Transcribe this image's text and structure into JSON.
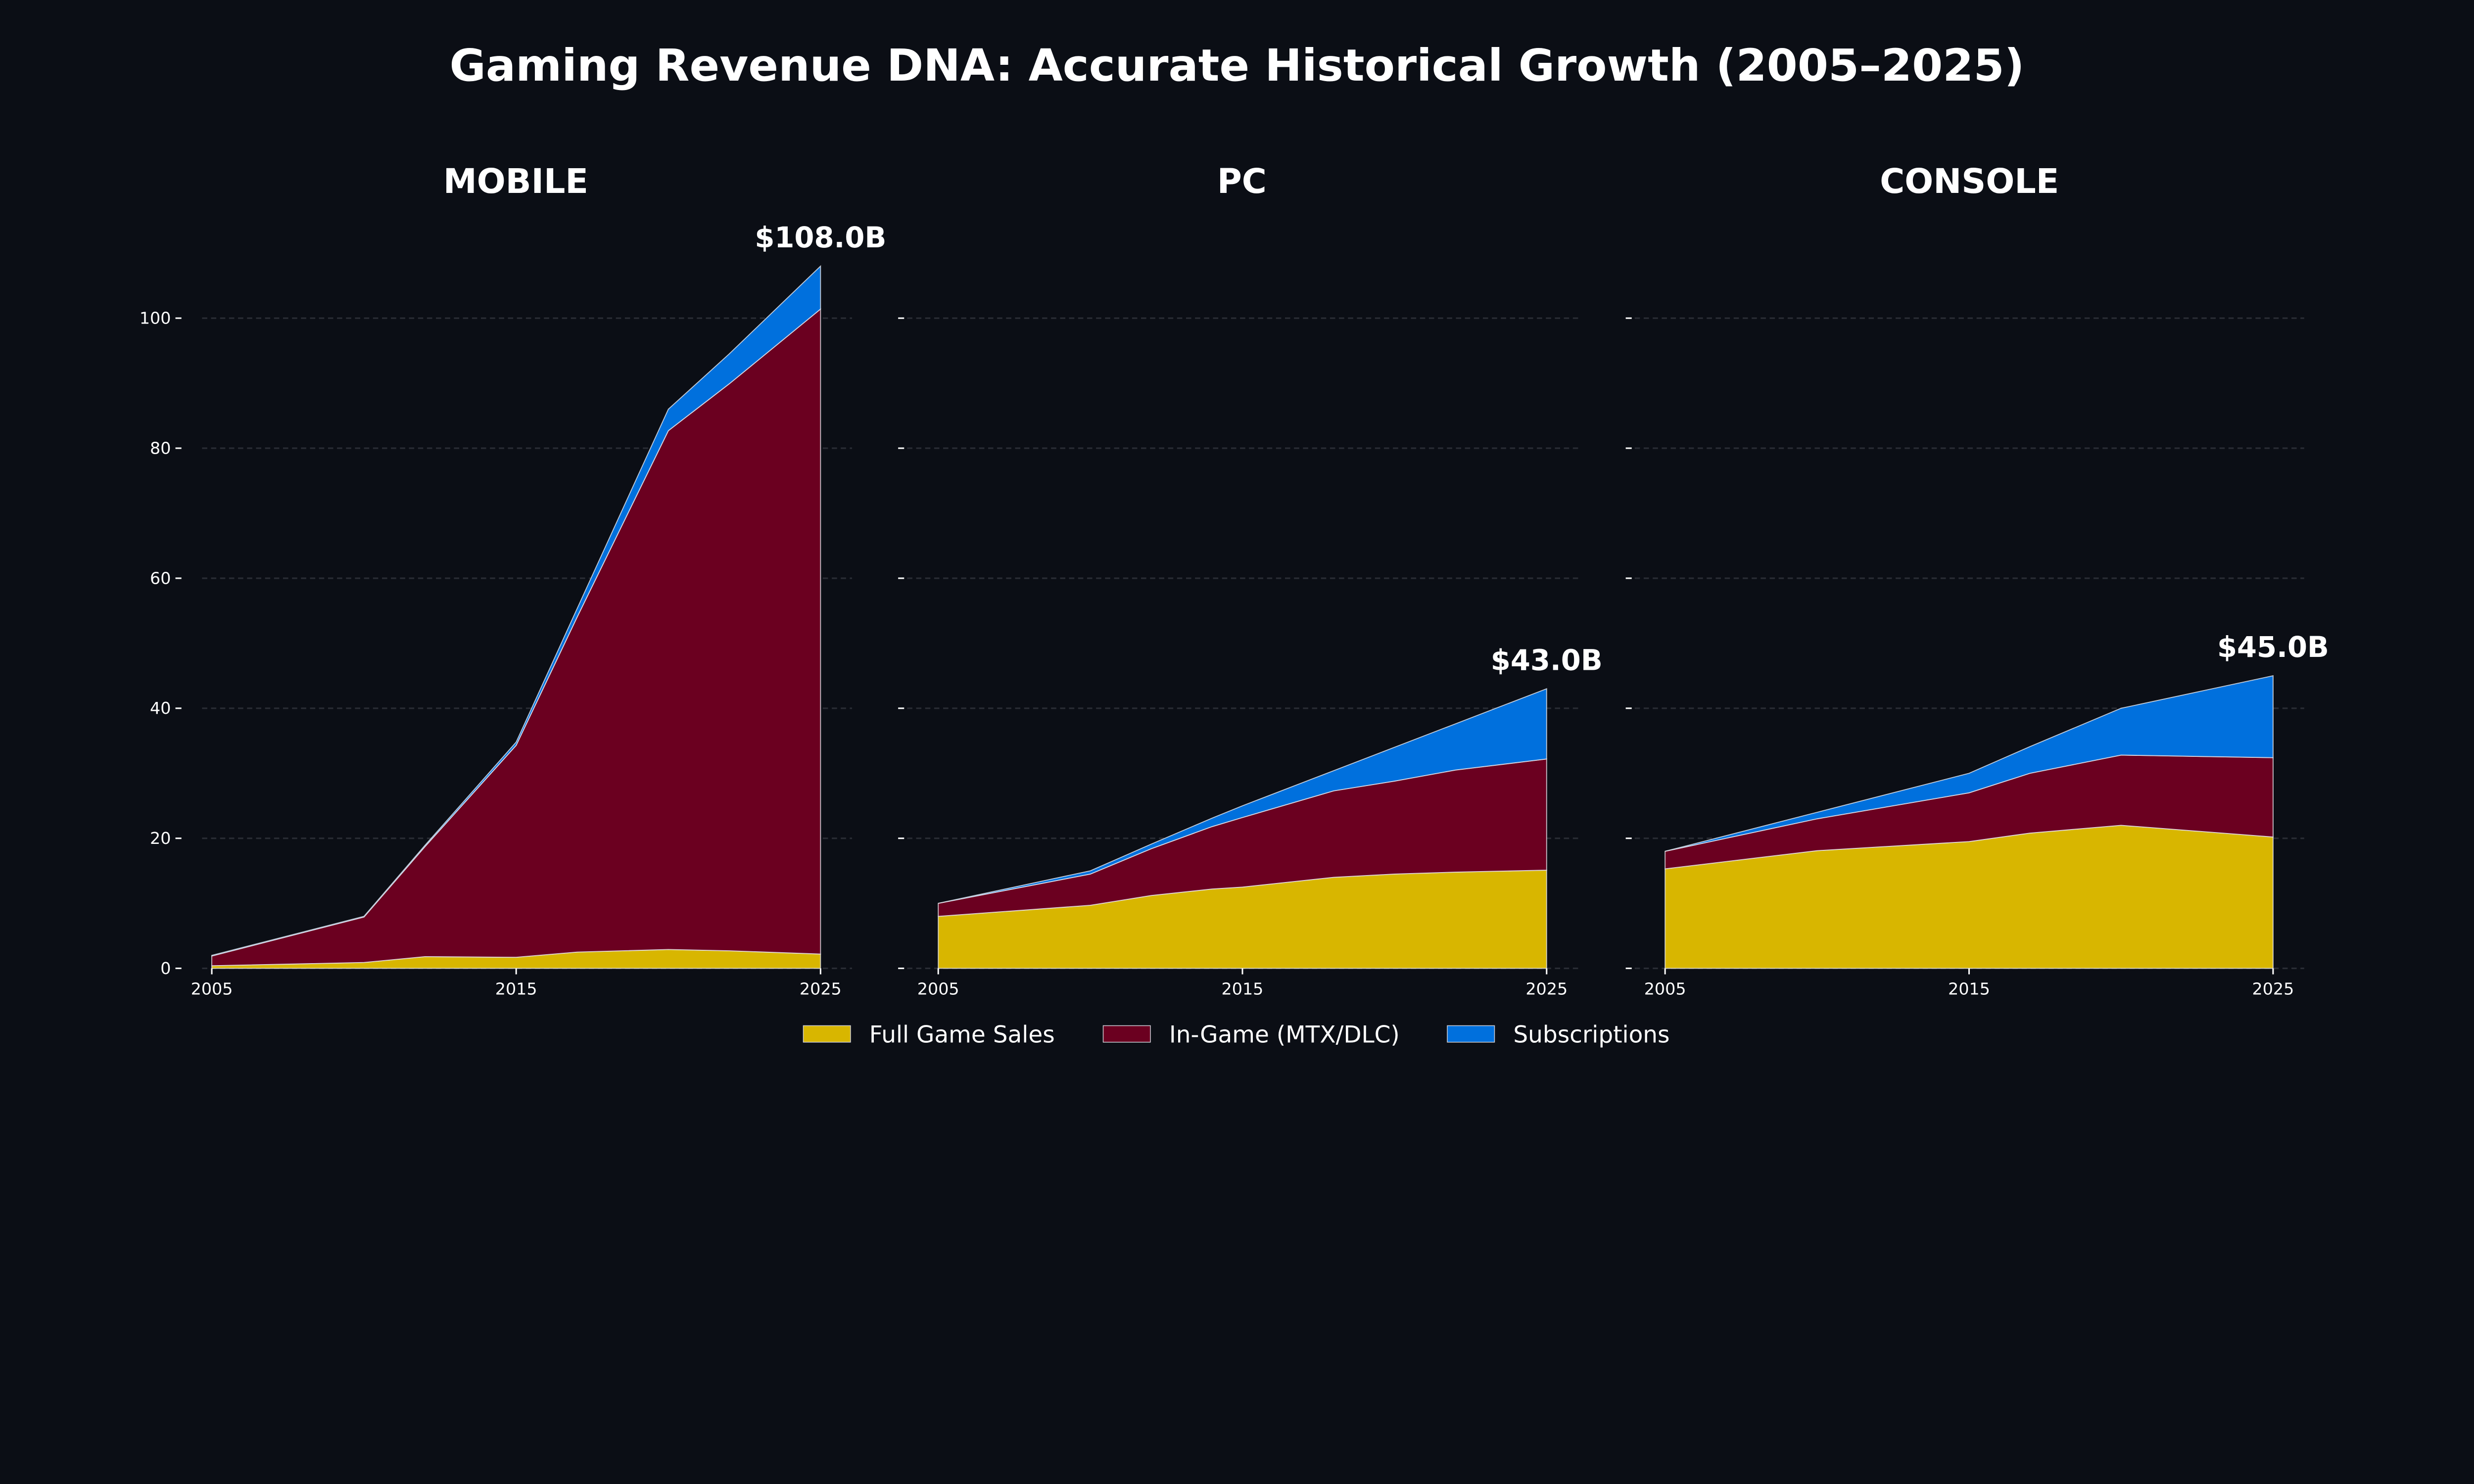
{
  "title": "Gaming Revenue DNA: Accurate Historical Growth (2005–2025)",
  "colors": {
    "background": "#0b0e15",
    "Full Game Sales": "#d8b600",
    "In-Game (MTX/DLC)": "#6b0020",
    "Subscriptions": "#0070dd"
  },
  "legend": {
    "position": "bottom-center",
    "entries": [
      "Full Game Sales",
      "In-Game (MTX/DLC)",
      "Subscriptions"
    ]
  },
  "chart_data": [
    {
      "type": "area",
      "stacked": true,
      "title": "MOBILE",
      "x": [
        2005,
        2010,
        2012,
        2015,
        2017,
        2020,
        2022,
        2025
      ],
      "series": [
        {
          "name": "Full Game Sales",
          "values": [
            0.4,
            0.9,
            1.8,
            1.7,
            2.5,
            2.9,
            2.7,
            2.2
          ]
        },
        {
          "name": "In-Game (MTX/DLC)",
          "values": [
            1.5,
            7.0,
            16.9,
            32.6,
            51.5,
            79.8,
            87.2,
            99.2
          ]
        },
        {
          "name": "Subscriptions",
          "values": [
            0.1,
            0.1,
            0.2,
            0.5,
            1.3,
            3.3,
            4.6,
            6.6
          ]
        }
      ],
      "total_label": "$108.0B",
      "xticks": [
        "2005",
        "2015",
        "2025"
      ],
      "yticks": [
        "0",
        "20",
        "40",
        "60",
        "80",
        "100"
      ],
      "ylim": [
        0,
        113
      ],
      "grid": true
    },
    {
      "type": "area",
      "stacked": true,
      "title": "PC",
      "x": [
        2005,
        2010,
        2012,
        2014,
        2015,
        2018,
        2020,
        2022,
        2025
      ],
      "series": [
        {
          "name": "Full Game Sales",
          "values": [
            8.0,
            9.7,
            11.2,
            12.2,
            12.5,
            14.0,
            14.5,
            14.8,
            15.1
          ]
        },
        {
          "name": "In-Game (MTX/DLC)",
          "values": [
            2.0,
            4.8,
            7.2,
            9.6,
            10.7,
            13.3,
            14.3,
            15.7,
            17.1
          ]
        },
        {
          "name": "Subscriptions",
          "values": [
            0.0,
            0.5,
            0.7,
            1.3,
            1.8,
            3.1,
            5.2,
            7.1,
            10.8
          ]
        }
      ],
      "total_label": "$43.0B",
      "xticks": [
        "2005",
        "2015",
        "2025"
      ],
      "yticks": [
        "",
        "",
        "",
        "",
        "",
        ""
      ],
      "ylim": [
        0,
        113
      ],
      "grid": true
    },
    {
      "type": "area",
      "stacked": true,
      "title": "CONSOLE",
      "x": [
        2005,
        2010,
        2015,
        2017,
        2020,
        2025
      ],
      "series": [
        {
          "name": "Full Game Sales",
          "values": [
            15.3,
            18.1,
            19.5,
            20.8,
            22.0,
            20.2
          ]
        },
        {
          "name": "In-Game (MTX/DLC)",
          "values": [
            2.7,
            4.9,
            7.5,
            9.2,
            10.8,
            12.2
          ]
        },
        {
          "name": "Subscriptions",
          "values": [
            0.0,
            1.0,
            3.0,
            4.1,
            7.2,
            12.6
          ]
        }
      ],
      "total_label": "$45.0B",
      "xticks": [
        "2005",
        "2015",
        "2025"
      ],
      "yticks": [
        "",
        "",
        "",
        "",
        "",
        ""
      ],
      "ylim": [
        0,
        113
      ],
      "grid": true
    }
  ]
}
